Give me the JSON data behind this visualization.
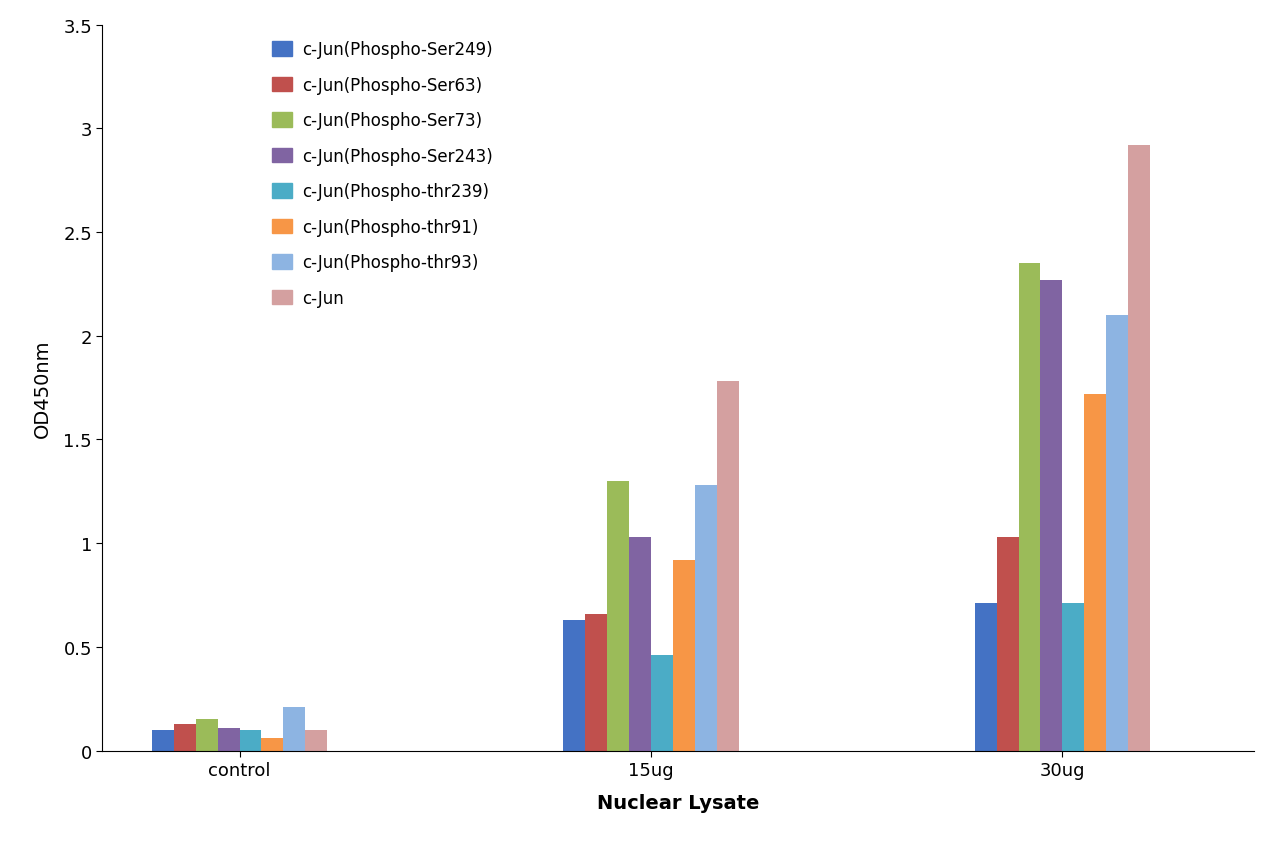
{
  "categories": [
    "control",
    "15ug",
    "30ug"
  ],
  "series": [
    {
      "label": "c-Jun(Phospho-Ser249)",
      "color": "#4472C4",
      "values": [
        0.1,
        0.63,
        0.71
      ]
    },
    {
      "label": "c-Jun(Phospho-Ser63)",
      "color": "#C0504D",
      "values": [
        0.13,
        0.66,
        1.03
      ]
    },
    {
      "label": "c-Jun(Phospho-Ser73)",
      "color": "#9BBB59",
      "values": [
        0.15,
        1.3,
        2.35
      ]
    },
    {
      "label": "c-Jun(Phospho-Ser243)",
      "color": "#8064A2",
      "values": [
        0.11,
        1.03,
        2.27
      ]
    },
    {
      "label": "c-Jun(Phospho-thr239)",
      "color": "#4BACC6",
      "values": [
        0.1,
        0.46,
        0.71
      ]
    },
    {
      "label": "c-Jun(Phospho-thr91)",
      "color": "#F79646",
      "values": [
        0.06,
        0.92,
        1.72
      ]
    },
    {
      "label": "c-Jun(Phospho-thr93)",
      "color": "#8DB4E2",
      "values": [
        0.21,
        1.28,
        2.1
      ]
    },
    {
      "label": "c-Jun",
      "color": "#D4A0A0",
      "values": [
        0.1,
        1.78,
        2.92
      ]
    }
  ],
  "ylabel": "OD450nm",
  "xlabel": "Nuclear Lysate",
  "ylim": [
    0,
    3.5
  ],
  "yticks": [
    0,
    0.5,
    1.0,
    1.5,
    2.0,
    2.5,
    3.0,
    3.5
  ],
  "background_color": "#ffffff",
  "bar_width": 0.08,
  "legend_fontsize": 12,
  "axis_label_fontsize": 14,
  "tick_fontsize": 13
}
